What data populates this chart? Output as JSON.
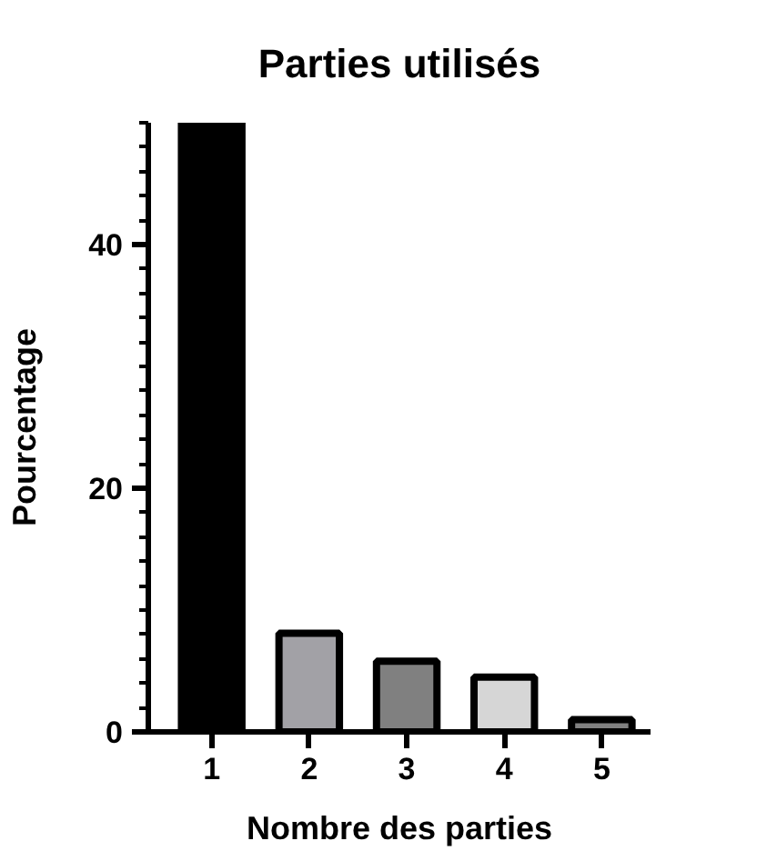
{
  "chart_data": {
    "type": "bar",
    "title": "Parties utilisés",
    "xlabel": "Nombre des parties",
    "ylabel": "Pourcentage",
    "categories": [
      "1",
      "2",
      "3",
      "4",
      "5"
    ],
    "values": [
      50,
      8.1,
      5.8,
      4.5,
      1
    ],
    "colors": [
      "#000000",
      "#a2a1a6",
      "#808080",
      "#d6d6d6",
      "#808080"
    ],
    "ylim": [
      0,
      50
    ],
    "yticks": [
      0,
      {
        "value": 2,
        "label": null
      },
      {
        "value": 4,
        "label": null
      },
      {
        "value": 6,
        "label": null
      },
      {
        "value": 8,
        "label": null
      },
      {
        "value": 10,
        "label": null
      },
      {
        "value": 12,
        "label": null
      },
      {
        "value": 14,
        "label": null
      },
      {
        "value": 16,
        "label": null
      },
      {
        "value": 18,
        "label": null
      },
      20,
      {
        "value": 22,
        "label": null
      },
      {
        "value": 24,
        "label": null
      },
      {
        "value": 26,
        "label": null
      },
      {
        "value": 28,
        "label": null
      },
      {
        "value": 30,
        "label": null
      },
      {
        "value": 32,
        "label": null
      },
      {
        "value": 34,
        "label": null
      },
      {
        "value": 36,
        "label": null
      },
      {
        "value": 38,
        "label": null
      },
      40,
      {
        "value": 42,
        "label": null
      },
      {
        "value": 44,
        "label": null
      },
      {
        "value": 46,
        "label": null
      },
      {
        "value": 48,
        "label": null
      },
      {
        "value": 50,
        "label": null
      }
    ],
    "grid": false
  }
}
